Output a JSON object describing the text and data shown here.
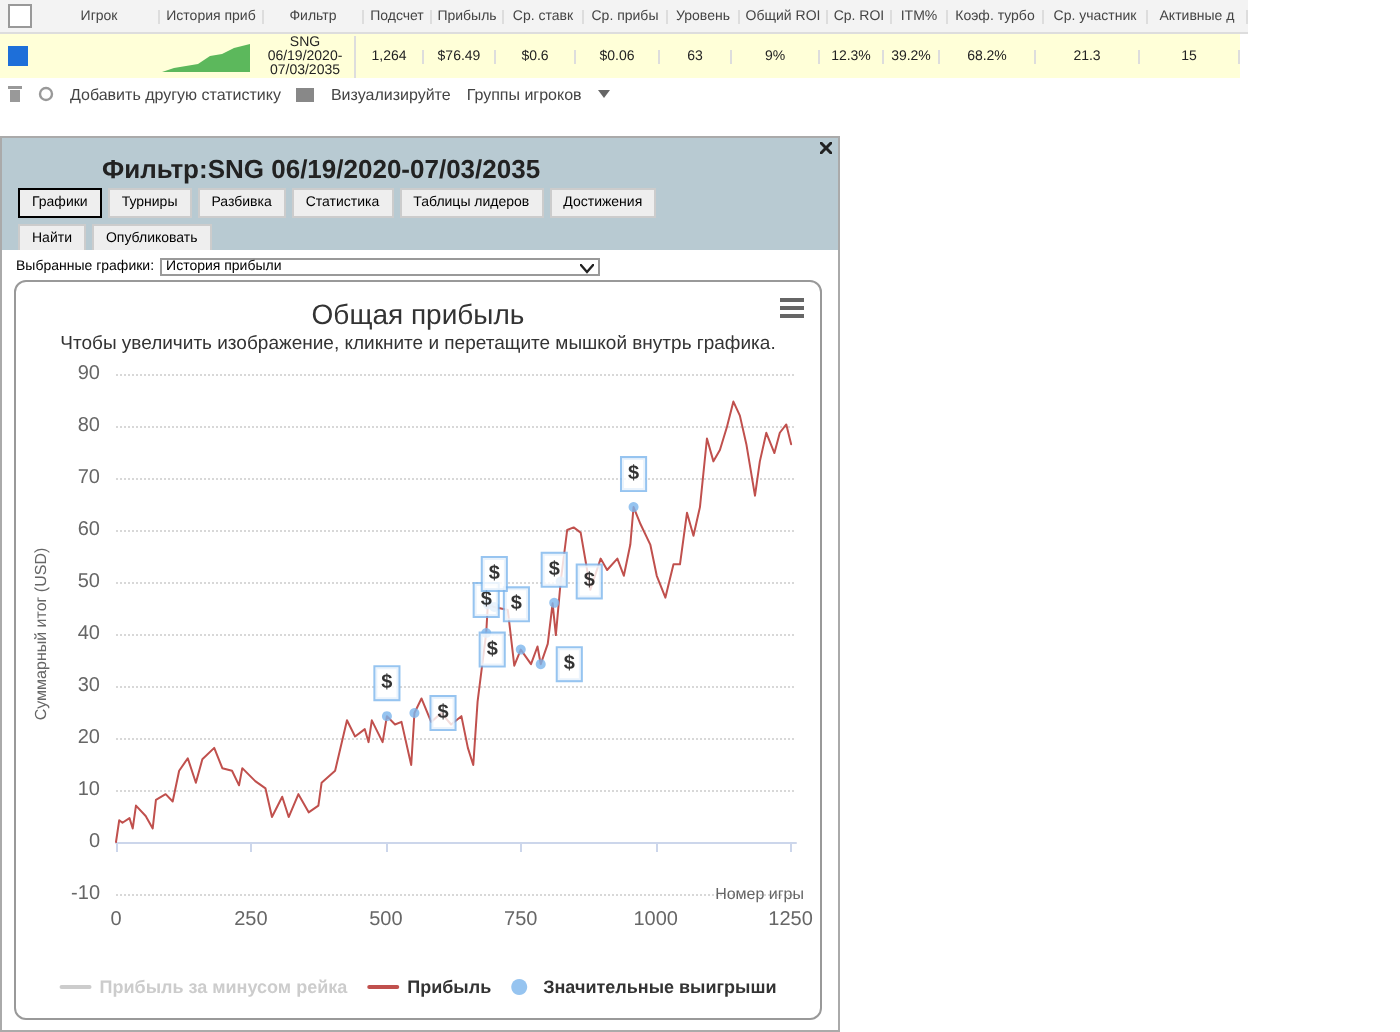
{
  "chart_data": {
    "type": "line",
    "title": "Общая прибыль",
    "subtitle": "Чтобы увеличить изображение, кликните и перетащите мышкой внутрь графика.",
    "xlabel": "Номер игры",
    "ylabel": "Суммарный итог (USD)",
    "xlim": [
      0,
      1260
    ],
    "xticks": [
      0,
      250,
      500,
      750,
      1000,
      1250
    ],
    "ylim": [
      -10,
      90
    ],
    "yticks": [
      -10,
      0,
      10,
      20,
      30,
      40,
      50,
      60,
      70,
      80,
      90
    ],
    "grid": "y",
    "legend": "bottom",
    "line_style": "solid",
    "series": [
      {
        "name": "Прибыль за минусом рейка",
        "color": "#cccccc"
      },
      {
        "name": "Прибыль",
        "color": "#c0504d",
        "marker": "none",
        "x": [
          0,
          6,
          12,
          25,
          31,
          37,
          55,
          68,
          74,
          92,
          105,
          117,
          133,
          148,
          160,
          182,
          197,
          215,
          228,
          234,
          258,
          277,
          289,
          308,
          320,
          338,
          357,
          375,
          381,
          406,
          428,
          443,
          461,
          468,
          474,
          494,
          502,
          517,
          529,
          547,
          553,
          566,
          584,
          603,
          621,
          640,
          652,
          662,
          670,
          686,
          689,
          701,
          726,
          738,
          750,
          769,
          781,
          787,
          800,
          809,
          815,
          824,
          836,
          848,
          861,
          873,
          879,
          898,
          910,
          929,
          941,
          953,
          959,
          972,
          990,
          1002,
          1018,
          1033,
          1045,
          1058,
          1070,
          1082,
          1095,
          1107,
          1119,
          1132,
          1144,
          1156,
          1168,
          1184,
          1193,
          1205,
          1220,
          1230,
          1242,
          1251
        ],
        "values": [
          0,
          4.2,
          3.7,
          4.6,
          2.6,
          7,
          5,
          2.6,
          8.1,
          9.2,
          7.8,
          13.7,
          16.1,
          11.4,
          15.9,
          18.1,
          14.2,
          13.7,
          10.9,
          14.2,
          11.7,
          10.3,
          4.8,
          8.7,
          4.8,
          9.2,
          5.7,
          7,
          11.4,
          13.7,
          23.4,
          20.3,
          21.7,
          19.2,
          23.4,
          19.2,
          24.2,
          22.6,
          23.1,
          14.8,
          24.8,
          27.6,
          23.1,
          24.8,
          22.6,
          24.2,
          18.1,
          14.8,
          27,
          40.2,
          45.7,
          45.2,
          44.6,
          33.9,
          37,
          34.2,
          37.6,
          34.2,
          38.1,
          45.9,
          39.8,
          50.1,
          60,
          60.5,
          59.5,
          52.3,
          48.5,
          54.5,
          52.3,
          54.5,
          51.2,
          57.2,
          64.4,
          61.1,
          57.2,
          51.2,
          47,
          53.4,
          53.4,
          63.3,
          58.9,
          64.4,
          77.6,
          73.2,
          75.4,
          79.8,
          84.7,
          82,
          76.5,
          66.6,
          73.2,
          78.7,
          74.8,
          78.7,
          80.3,
          76.5
        ]
      },
      {
        "name": "Значительные выигрыши",
        "type": "scatter",
        "color": "#7cb5ec",
        "marker": "circle",
        "x": [
          502,
          553,
          686,
          689,
          701,
          750,
          787,
          812,
          824,
          959
        ],
        "values": [
          24.2,
          24.8,
          40.2,
          45.7,
          45.2,
          37,
          34.2,
          46,
          50.1,
          64.4
        ],
        "value_labels": [
          "$",
          "$",
          "$",
          "$",
          "$",
          "$",
          "$",
          "$",
          "$",
          "$"
        ]
      }
    ],
    "annotations": [
      "Игрок",
      "История приб",
      "Фильтр",
      "Подсчет",
      "Прибыль",
      "Ср. ставк",
      "Ср. прибы",
      "Уровень",
      "Общий ROI",
      "Ср. ROI",
      "ITM%",
      "Коэф. турбо",
      "Ср. участник",
      "Активные д",
      "SNG 06/19/2020-07/03/2035",
      "1,264",
      "$76.49",
      "$0.6",
      "$0.06",
      "63",
      "9%",
      "12.3%",
      "39.2%",
      "68.2%",
      "21.3",
      "15",
      "Добавить другую статистику",
      "Визуализируйте",
      "Группы игроков",
      "Фильтр:SNG 06/19/2020-07/03/2035",
      "Графики",
      "Турниры",
      "Разбивка",
      "Статистика",
      "Таблицы лидеров",
      "Достижения",
      "Найти",
      "Опубликовать",
      "Выбранные графики:",
      "История прибыли"
    ]
  }
}
